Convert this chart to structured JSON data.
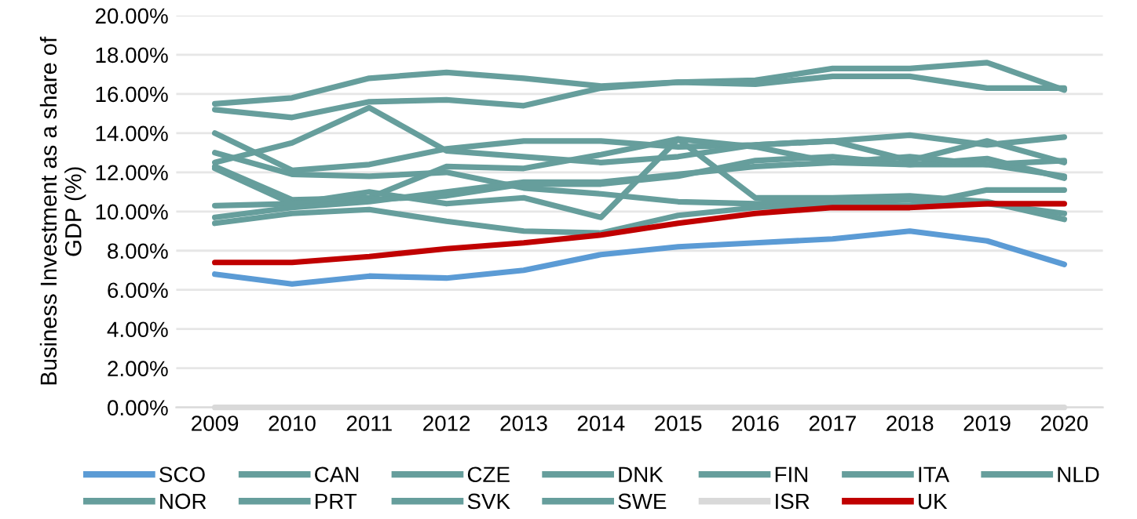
{
  "chart_data": {
    "type": "line",
    "ylabel": "Business Investment as a share of\nGDP (%)",
    "categories": [
      "2009",
      "2010",
      "2011",
      "2012",
      "2013",
      "2014",
      "2015",
      "2016",
      "2017",
      "2018",
      "2019",
      "2020"
    ],
    "ylim": [
      0,
      20
    ],
    "yticks": [
      {
        "value": 0,
        "label": "0.00%"
      },
      {
        "value": 2,
        "label": "2.00%"
      },
      {
        "value": 4,
        "label": "4.00%"
      },
      {
        "value": 6,
        "label": "6.00%"
      },
      {
        "value": 8,
        "label": "8.00%"
      },
      {
        "value": 10,
        "label": "10.00%"
      },
      {
        "value": 12,
        "label": "12.00%"
      },
      {
        "value": 14,
        "label": "14.00%"
      },
      {
        "value": 16,
        "label": "16.00%"
      },
      {
        "value": 18,
        "label": "18.00%"
      },
      {
        "value": 20,
        "label": "20.00%"
      }
    ],
    "grid": "y",
    "legend": "bottom",
    "marker": "none",
    "line_style": "solid",
    "series": [
      {
        "name": "SCO",
        "color": "#5b9bd5",
        "values": [
          6.8,
          6.3,
          6.7,
          6.6,
          7.0,
          7.8,
          8.2,
          8.4,
          8.6,
          9.0,
          8.5,
          7.3
        ]
      },
      {
        "name": "CAN",
        "color": "#669e9c",
        "values": [
          15.5,
          15.8,
          16.8,
          17.1,
          16.8,
          16.4,
          16.6,
          16.7,
          17.3,
          17.3,
          17.6,
          16.2
        ]
      },
      {
        "name": "CZE",
        "color": "#669e9c",
        "values": [
          15.2,
          14.8,
          15.6,
          15.7,
          15.4,
          16.3,
          16.6,
          16.5,
          16.9,
          16.9,
          16.3,
          16.3
        ]
      },
      {
        "name": "DNK",
        "color": "#669e9c",
        "values": [
          14.0,
          12.1,
          12.4,
          13.2,
          13.6,
          13.6,
          13.3,
          13.4,
          13.6,
          13.9,
          13.4,
          13.8
        ]
      },
      {
        "name": "FIN",
        "color": "#669e9c",
        "values": [
          12.5,
          13.5,
          15.3,
          13.1,
          12.8,
          12.5,
          12.8,
          13.4,
          13.6,
          12.6,
          13.6,
          12.5
        ]
      },
      {
        "name": "ITA",
        "color": "#669e9c",
        "values": [
          13.0,
          11.9,
          11.8,
          12.0,
          11.2,
          10.9,
          10.5,
          10.4,
          10.5,
          10.6,
          10.4,
          9.9
        ]
      },
      {
        "name": "NLD",
        "color": "#669e9c",
        "values": [
          12.3,
          10.6,
          10.7,
          12.3,
          12.2,
          12.9,
          13.7,
          10.7,
          10.7,
          10.8,
          10.5,
          9.6
        ]
      },
      {
        "name": "NOR",
        "color": "#669e9c",
        "values": [
          12.2,
          10.4,
          11.0,
          10.4,
          10.7,
          9.7,
          13.7,
          13.3,
          12.5,
          12.4,
          12.4,
          11.8
        ]
      },
      {
        "name": "PRT",
        "color": "#669e9c",
        "values": [
          10.3,
          10.4,
          10.6,
          10.8,
          11.4,
          11.4,
          11.8,
          12.6,
          12.8,
          12.4,
          12.7,
          11.7
        ]
      },
      {
        "name": "SVK",
        "color": "#669e9c",
        "values": [
          9.7,
          10.2,
          10.5,
          11.0,
          11.5,
          11.5,
          11.9,
          12.3,
          12.5,
          12.8,
          12.4,
          12.6
        ]
      },
      {
        "name": "SWE",
        "color": "#669e9c",
        "values": [
          9.4,
          9.9,
          10.1,
          9.5,
          9.0,
          8.9,
          9.8,
          10.2,
          10.4,
          10.3,
          11.1,
          11.1
        ]
      },
      {
        "name": "ISR",
        "color": "#d9d9d9",
        "values": [
          0,
          0,
          0,
          0,
          0,
          0,
          0,
          0,
          0,
          0,
          0,
          0
        ]
      },
      {
        "name": "UK",
        "color": "#c00000",
        "values": [
          7.4,
          7.4,
          7.7,
          8.1,
          8.4,
          8.8,
          9.4,
          9.9,
          10.2,
          10.2,
          10.4,
          10.4
        ]
      }
    ]
  }
}
